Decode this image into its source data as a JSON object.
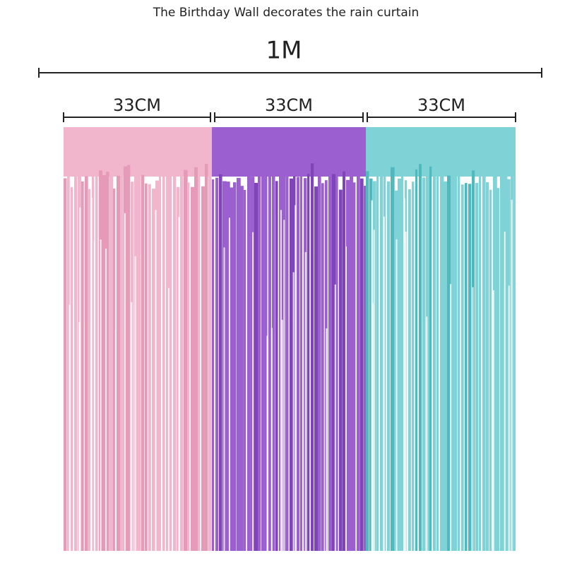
{
  "header": {
    "title": "The Birthday Wall decorates the rain curtain",
    "total_width": "1M"
  },
  "panels": [
    {
      "width": "33CM"
    },
    {
      "width": "33CM"
    },
    {
      "width": "33CM"
    }
  ]
}
